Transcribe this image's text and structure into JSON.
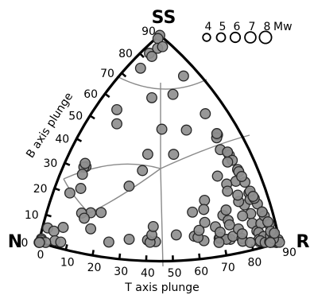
{
  "chart_data": {
    "type": "scatter",
    "plot_kind": "ternary",
    "corners": {
      "top": "SS",
      "left": "N",
      "right": "R"
    },
    "left_axis": {
      "label": "B axis plunge",
      "ticks": [
        "0",
        "10",
        "20",
        "30",
        "40",
        "50",
        "60",
        "70",
        "80",
        "90"
      ]
    },
    "bottom_axis": {
      "label": "T axis plunge",
      "ticks": [
        "0",
        "10",
        "20",
        "30",
        "40",
        "50",
        "60",
        "70",
        "80",
        "90"
      ]
    },
    "legend": {
      "title": "Mw",
      "entries": [
        {
          "label": "4",
          "mw": 4
        },
        {
          "label": "5",
          "mw": 5
        },
        {
          "label": "6",
          "mw": 6
        },
        {
          "label": "7",
          "mw": 7
        },
        {
          "label": "8",
          "mw": 8
        }
      ],
      "placement": "top-right"
    },
    "points_note": "approximate positions; each point is (b, t) read off the B and T plunge scales",
    "points": [
      [
        86,
        3
      ],
      [
        80,
        3
      ],
      [
        70,
        3
      ],
      [
        72,
        11
      ],
      [
        68,
        10
      ],
      [
        73,
        14
      ],
      [
        64,
        2
      ],
      [
        63,
        29
      ],
      [
        52,
        4
      ],
      [
        48,
        13
      ],
      [
        54,
        22
      ],
      [
        55,
        28
      ],
      [
        46,
        36
      ],
      [
        46,
        30
      ],
      [
        40,
        36
      ],
      [
        40,
        30
      ],
      [
        36,
        31
      ],
      [
        38,
        8
      ],
      [
        38,
        5
      ],
      [
        36,
        9
      ],
      [
        39,
        2
      ],
      [
        32,
        30
      ],
      [
        32,
        14
      ],
      [
        31,
        7
      ],
      [
        24,
        27
      ],
      [
        24,
        24
      ],
      [
        24,
        21
      ],
      [
        22,
        23
      ],
      [
        18,
        17
      ],
      [
        18,
        3
      ],
      [
        16,
        13
      ],
      [
        17,
        27
      ],
      [
        10,
        3
      ],
      [
        8,
        5
      ],
      [
        7,
        17
      ],
      [
        4,
        6
      ],
      [
        2,
        12
      ],
      [
        4,
        20
      ],
      [
        2,
        2
      ],
      [
        0,
        4
      ],
      [
        4,
        34
      ],
      [
        9,
        38
      ],
      [
        5,
        44
      ],
      [
        8,
        42
      ],
      [
        3,
        43
      ],
      [
        13,
        42
      ],
      [
        18,
        41
      ],
      [
        13,
        47
      ],
      [
        27,
        58
      ],
      [
        23,
        54
      ],
      [
        25,
        54
      ],
      [
        10,
        57
      ],
      [
        7,
        54
      ],
      [
        12,
        51
      ],
      [
        11,
        57
      ],
      [
        9,
        60
      ],
      [
        20,
        51
      ],
      [
        28,
        48
      ],
      [
        24,
        47
      ],
      [
        11,
        52
      ],
      [
        35,
        48
      ],
      [
        37,
        53
      ],
      [
        28,
        56
      ],
      [
        47,
        55
      ],
      [
        34,
        53
      ],
      [
        31,
        58
      ],
      [
        21,
        56
      ],
      [
        36,
        60
      ],
      [
        44,
        53
      ],
      [
        40,
        57
      ],
      [
        48,
        46
      ],
      [
        56,
        42
      ],
      [
        45,
        44
      ],
      [
        42,
        46
      ],
      [
        52,
        49
      ],
      [
        44,
        51
      ],
      [
        43,
        55
      ],
      [
        38,
        55
      ],
      [
        39,
        49
      ],
      [
        33,
        51
      ],
      [
        30,
        55
      ],
      [
        25,
        49
      ],
      [
        31,
        52
      ],
      [
        16,
        51
      ],
      [
        18,
        54
      ],
      [
        19,
        57
      ],
      [
        29,
        59
      ],
      [
        37,
        57
      ],
      [
        28,
        63
      ],
      [
        24,
        61
      ],
      [
        30,
        62
      ],
      [
        25,
        66
      ],
      [
        33,
        62
      ],
      [
        20,
        63
      ],
      [
        32,
        66
      ],
      [
        23,
        59
      ],
      [
        16,
        66
      ],
      [
        20,
        66
      ],
      [
        24,
        69
      ],
      [
        9,
        59
      ],
      [
        15,
        67
      ],
      [
        12,
        60
      ],
      [
        17,
        60
      ],
      [
        15,
        56
      ],
      [
        20,
        72
      ],
      [
        11,
        77
      ],
      [
        9,
        69
      ],
      [
        12,
        70
      ],
      [
        6,
        80
      ],
      [
        5,
        70
      ],
      [
        10,
        63
      ],
      [
        7,
        70
      ],
      [
        6,
        64
      ],
      [
        8,
        76
      ],
      [
        2,
        73
      ],
      [
        1,
        81
      ],
      [
        3,
        77
      ],
      [
        1,
        67
      ],
      [
        5,
        75
      ],
      [
        9,
        81
      ],
      [
        3,
        86
      ],
      [
        13,
        73
      ],
      [
        10,
        76
      ],
      [
        14,
        62
      ],
      [
        16,
        72
      ],
      [
        15,
        77
      ],
      [
        21,
        69
      ],
      [
        2,
        58
      ],
      [
        1,
        76
      ],
      [
        26,
        70
      ]
    ]
  }
}
